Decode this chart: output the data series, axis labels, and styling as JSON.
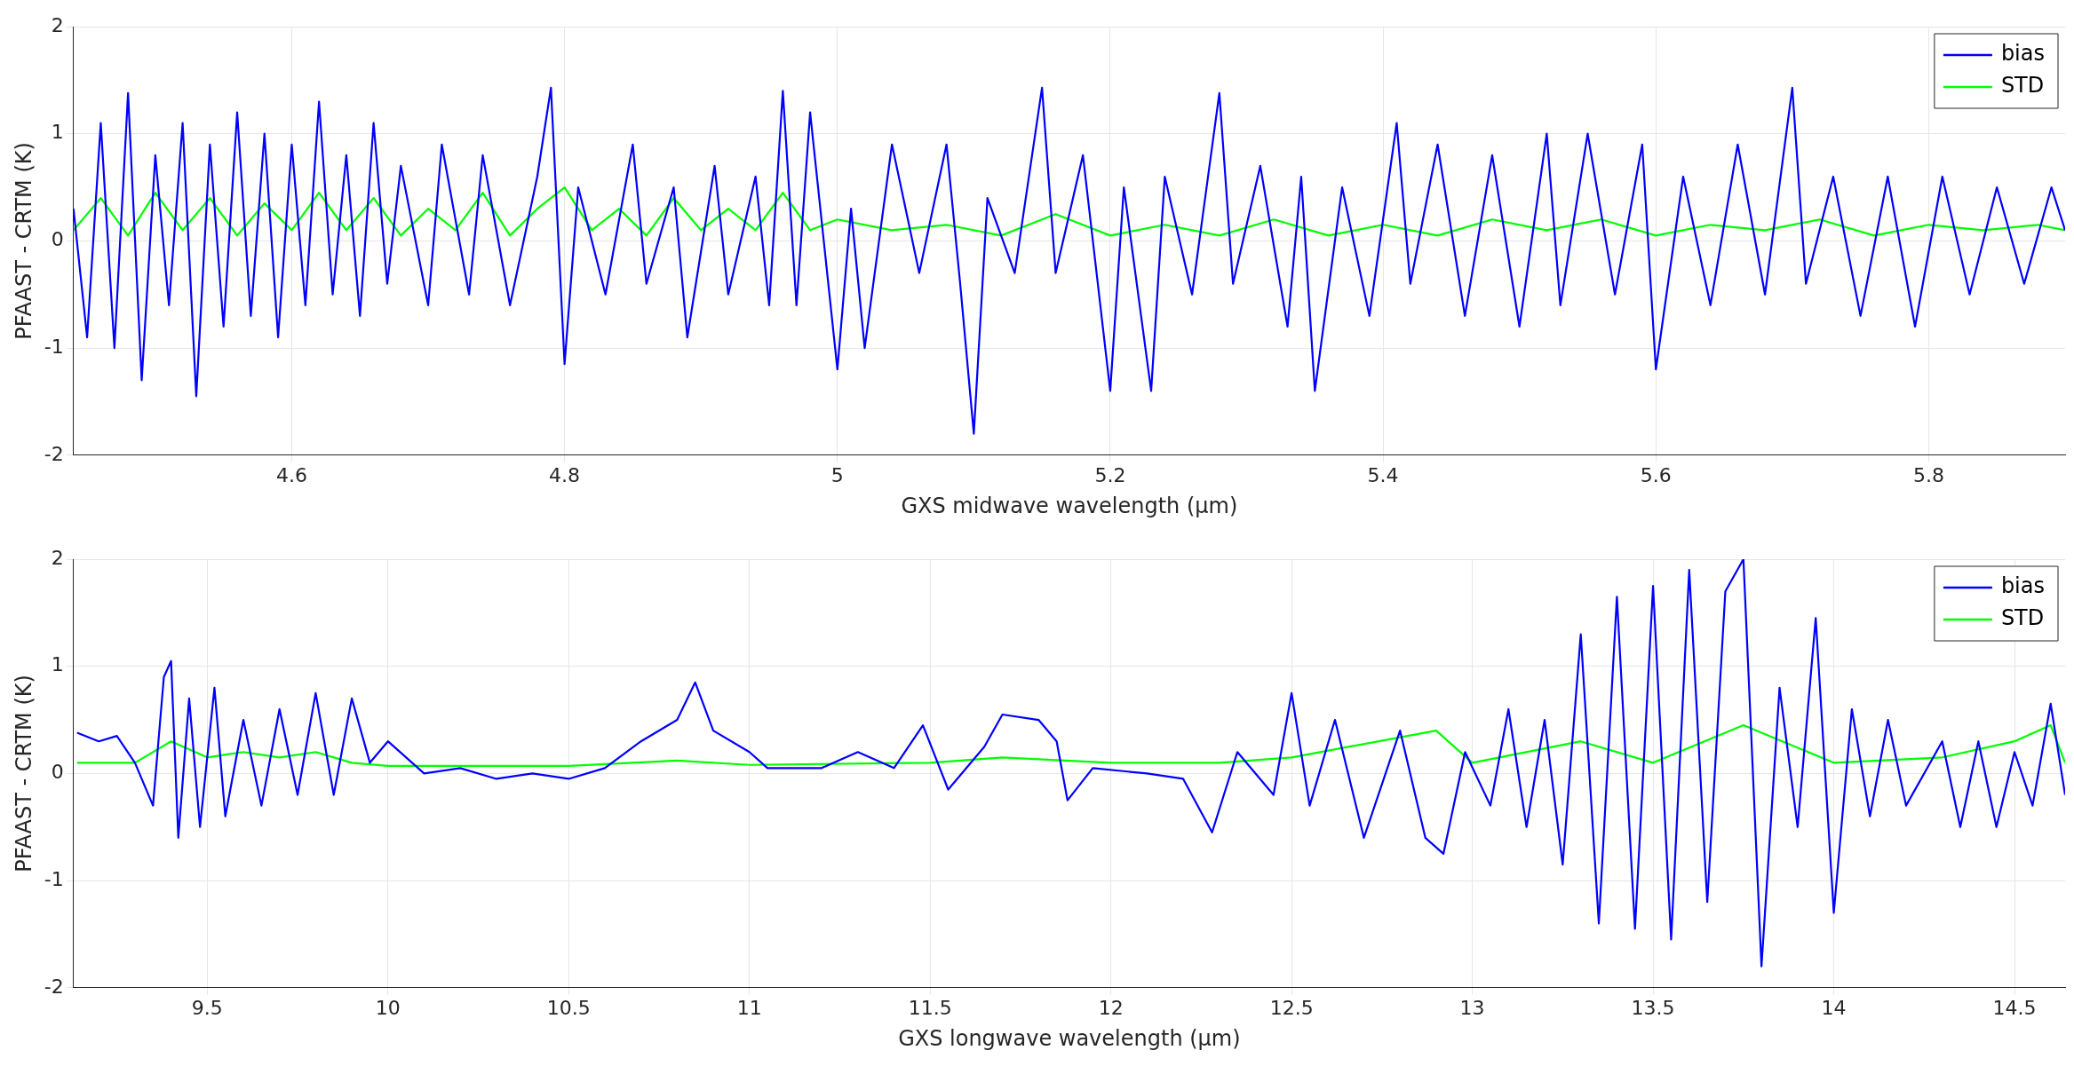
{
  "chart_data": [
    {
      "type": "line",
      "xlabel": "GXS midwave wavelength (μm)",
      "ylabel": "PFAAST - CRTM (K)",
      "xlim": [
        4.44,
        5.9
      ],
      "xticks": [
        {
          "value": 4.6,
          "label": "4.6"
        },
        {
          "value": 4.8,
          "label": "4.8"
        },
        5,
        {
          "value": 5.2,
          "label": "5.2"
        },
        {
          "value": 5.4,
          "label": "5.4"
        },
        {
          "value": 5.6,
          "label": "5.6"
        },
        {
          "value": 5.8,
          "label": "5.8"
        }
      ],
      "ylim": [
        -2,
        2
      ],
      "yticks": [
        -2,
        -1,
        0,
        1,
        2
      ],
      "grid": true,
      "legend": "top right",
      "series": [
        {
          "name": "bias",
          "color": "#0000ff",
          "x": [
            4.44,
            4.45,
            4.46,
            4.47,
            4.48,
            4.49,
            4.5,
            4.51,
            4.52,
            4.53,
            4.54,
            4.55,
            4.56,
            4.57,
            4.58,
            4.59,
            4.6,
            4.61,
            4.62,
            4.63,
            4.64,
            4.65,
            4.66,
            4.67,
            4.68,
            4.7,
            4.71,
            4.73,
            4.74,
            4.76,
            4.78,
            4.79,
            4.8,
            4.81,
            4.83,
            4.85,
            4.86,
            4.88,
            4.89,
            4.91,
            4.92,
            4.94,
            4.95,
            4.96,
            4.97,
            4.98,
            5.0,
            5.01,
            5.02,
            5.04,
            5.06,
            5.08,
            5.09,
            5.1,
            5.11,
            5.13,
            5.15,
            5.16,
            5.18,
            5.2,
            5.21,
            5.23,
            5.24,
            5.26,
            5.28,
            5.29,
            5.31,
            5.33,
            5.34,
            5.35,
            5.37,
            5.39,
            5.41,
            5.42,
            5.44,
            5.46,
            5.48,
            5.5,
            5.52,
            5.53,
            5.55,
            5.57,
            5.59,
            5.6,
            5.62,
            5.64,
            5.66,
            5.68,
            5.7,
            5.71,
            5.73,
            5.75,
            5.77,
            5.79,
            5.81,
            5.83,
            5.85,
            5.87,
            5.89,
            5.9
          ],
          "values": [
            0.3,
            -0.9,
            1.1,
            -1.0,
            1.38,
            -1.3,
            0.8,
            -0.6,
            1.1,
            -1.45,
            0.9,
            -0.8,
            1.2,
            -0.7,
            1.0,
            -0.9,
            0.9,
            -0.6,
            1.3,
            -0.5,
            0.8,
            -0.7,
            1.1,
            -0.4,
            0.7,
            -0.6,
            0.9,
            -0.5,
            0.8,
            -0.6,
            0.6,
            1.43,
            -1.15,
            0.5,
            -0.5,
            0.9,
            -0.4,
            0.5,
            -0.9,
            0.7,
            -0.5,
            0.6,
            -0.6,
            1.4,
            -0.6,
            1.2,
            -1.2,
            0.3,
            -1.0,
            0.9,
            -0.3,
            0.9,
            -0.4,
            -1.8,
            0.4,
            -0.3,
            1.43,
            -0.3,
            0.8,
            -1.4,
            0.5,
            -1.4,
            0.6,
            -0.5,
            1.38,
            -0.4,
            0.7,
            -0.8,
            0.6,
            -1.4,
            0.5,
            -0.7,
            1.1,
            -0.4,
            0.9,
            -0.7,
            0.8,
            -0.8,
            1.0,
            -0.6,
            1.0,
            -0.5,
            0.9,
            -1.2,
            0.6,
            -0.6,
            0.9,
            -0.5,
            1.43,
            -0.4,
            0.6,
            -0.7,
            0.6,
            -0.8,
            0.6,
            -0.5,
            0.5,
            -0.4,
            0.5,
            0.1
          ]
        },
        {
          "name": "STD",
          "color": "#00ff00",
          "x": [
            4.44,
            4.46,
            4.48,
            4.5,
            4.52,
            4.54,
            4.56,
            4.58,
            4.6,
            4.62,
            4.64,
            4.66,
            4.68,
            4.7,
            4.72,
            4.74,
            4.76,
            4.78,
            4.8,
            4.82,
            4.84,
            4.86,
            4.88,
            4.9,
            4.92,
            4.94,
            4.96,
            4.98,
            5.0,
            5.04,
            5.08,
            5.12,
            5.16,
            5.2,
            5.24,
            5.28,
            5.32,
            5.36,
            5.4,
            5.44,
            5.48,
            5.52,
            5.56,
            5.6,
            5.64,
            5.68,
            5.72,
            5.76,
            5.8,
            5.84,
            5.88,
            5.9
          ],
          "values": [
            0.1,
            0.4,
            0.05,
            0.45,
            0.1,
            0.4,
            0.05,
            0.35,
            0.1,
            0.45,
            0.1,
            0.4,
            0.05,
            0.3,
            0.1,
            0.45,
            0.05,
            0.3,
            0.5,
            0.1,
            0.3,
            0.05,
            0.4,
            0.1,
            0.3,
            0.1,
            0.45,
            0.1,
            0.2,
            0.1,
            0.15,
            0.05,
            0.25,
            0.05,
            0.15,
            0.05,
            0.2,
            0.05,
            0.15,
            0.05,
            0.2,
            0.1,
            0.2,
            0.05,
            0.15,
            0.1,
            0.2,
            0.05,
            0.15,
            0.1,
            0.15,
            0.1
          ]
        }
      ]
    },
    {
      "type": "line",
      "xlabel": "GXS longwave wavelength (μm)",
      "ylabel": "PFAAST - CRTM (K)",
      "xlim": [
        9.13,
        14.64
      ],
      "xticks": [
        9.5,
        10,
        10.5,
        11,
        11.5,
        12,
        12.5,
        13,
        13.5,
        14,
        14.5
      ],
      "ylim": [
        -2,
        2
      ],
      "yticks": [
        -2,
        -1,
        0,
        1,
        2
      ],
      "grid": true,
      "legend": "top right",
      "series": [
        {
          "name": "bias",
          "color": "#0000ff",
          "x": [
            9.14,
            9.2,
            9.25,
            9.3,
            9.35,
            9.38,
            9.4,
            9.42,
            9.45,
            9.48,
            9.52,
            9.55,
            9.6,
            9.65,
            9.7,
            9.75,
            9.8,
            9.85,
            9.9,
            9.95,
            10.0,
            10.1,
            10.2,
            10.3,
            10.4,
            10.5,
            10.6,
            10.7,
            10.8,
            10.85,
            10.9,
            11.0,
            11.05,
            11.2,
            11.3,
            11.4,
            11.48,
            11.55,
            11.65,
            11.7,
            11.8,
            11.85,
            11.88,
            11.95,
            12.1,
            12.2,
            12.28,
            12.35,
            12.45,
            12.5,
            12.55,
            12.62,
            12.7,
            12.8,
            12.87,
            12.92,
            12.98,
            13.05,
            13.1,
            13.15,
            13.2,
            13.25,
            13.3,
            13.35,
            13.4,
            13.45,
            13.5,
            13.55,
            13.6,
            13.65,
            13.7,
            13.75,
            13.8,
            13.85,
            13.9,
            13.95,
            14.0,
            14.05,
            14.1,
            14.15,
            14.2,
            14.3,
            14.35,
            14.4,
            14.45,
            14.5,
            14.55,
            14.6,
            14.64
          ],
          "values": [
            0.38,
            0.3,
            0.35,
            0.1,
            -0.3,
            0.9,
            1.05,
            -0.6,
            0.7,
            -0.5,
            0.8,
            -0.4,
            0.5,
            -0.3,
            0.6,
            -0.2,
            0.75,
            -0.2,
            0.7,
            0.1,
            0.3,
            0.0,
            0.05,
            -0.05,
            0.0,
            -0.05,
            0.05,
            0.3,
            0.5,
            0.85,
            0.4,
            0.2,
            0.05,
            0.05,
            0.2,
            0.05,
            0.45,
            -0.15,
            0.25,
            0.55,
            0.5,
            0.3,
            -0.25,
            0.05,
            0.0,
            -0.05,
            -0.55,
            0.2,
            -0.2,
            0.75,
            -0.3,
            0.5,
            -0.6,
            0.4,
            -0.6,
            -0.75,
            0.2,
            -0.3,
            0.6,
            -0.5,
            0.5,
            -0.85,
            1.3,
            -1.4,
            1.65,
            -1.45,
            1.75,
            -1.55,
            1.9,
            -1.2,
            1.7,
            2.0,
            -1.8,
            0.8,
            -0.5,
            1.45,
            -1.3,
            0.6,
            -0.4,
            0.5,
            -0.3,
            0.3,
            -0.5,
            0.3,
            -0.5,
            0.2,
            -0.3,
            0.65,
            -0.2
          ]
        },
        {
          "name": "STD",
          "color": "#00ff00",
          "x": [
            9.14,
            9.3,
            9.4,
            9.5,
            9.6,
            9.7,
            9.8,
            9.9,
            10.0,
            10.5,
            10.8,
            11.0,
            11.5,
            11.7,
            12.0,
            12.3,
            12.5,
            12.9,
            13.0,
            13.3,
            13.5,
            13.75,
            14.0,
            14.3,
            14.5,
            14.6,
            14.64
          ],
          "values": [
            0.1,
            0.1,
            0.3,
            0.15,
            0.2,
            0.15,
            0.2,
            0.1,
            0.07,
            0.07,
            0.12,
            0.08,
            0.1,
            0.15,
            0.1,
            0.1,
            0.15,
            0.4,
            0.1,
            0.3,
            0.1,
            0.45,
            0.1,
            0.15,
            0.3,
            0.45,
            0.1
          ]
        }
      ]
    }
  ]
}
